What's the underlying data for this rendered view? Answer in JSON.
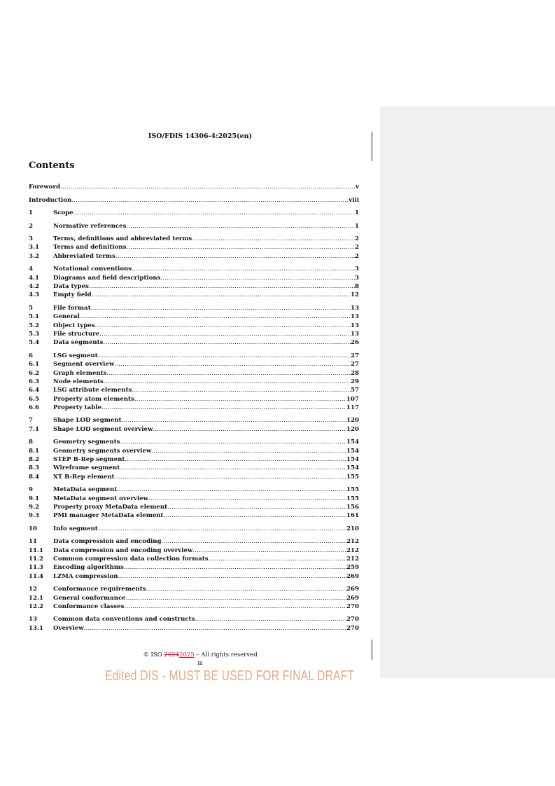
{
  "header": {
    "doc_id": "ISO/FDIS 14306-4:2025(en)"
  },
  "contents_title": "Contents",
  "toc": [
    [
      {
        "num": "",
        "title": "Foreword",
        "page": "v"
      }
    ],
    [
      {
        "num": "",
        "title": "Introduction",
        "page": "viii"
      }
    ],
    [
      {
        "num": "1",
        "title": "Scope",
        "page": "1"
      }
    ],
    [
      {
        "num": "2",
        "title": "Normative references",
        "page": "1"
      }
    ],
    [
      {
        "num": "3",
        "title": "Terms, definitions and abbreviated terms",
        "page": "2"
      },
      {
        "num": "3.1",
        "title": "Terms and definitions",
        "page": "2"
      },
      {
        "num": "3.2",
        "title": "Abbreviated terms",
        "page": "2"
      }
    ],
    [
      {
        "num": "4",
        "title": "Notational conventions",
        "page": "3"
      },
      {
        "num": "4.1",
        "title": "Diagrams and field descriptions",
        "page": "3"
      },
      {
        "num": "4.2",
        "title": "Data types",
        "page": "8"
      },
      {
        "num": "4.3",
        "title": "Empty field",
        "page": "12"
      }
    ],
    [
      {
        "num": "5",
        "title": "File format",
        "page": "13"
      },
      {
        "num": "5.1",
        "title": "General",
        "page": "13"
      },
      {
        "num": "5.2",
        "title": "Object types",
        "page": "13"
      },
      {
        "num": "5.3",
        "title": "File structure",
        "page": "13"
      },
      {
        "num": "5.4",
        "title": "Data segments",
        "page": "26"
      }
    ],
    [
      {
        "num": "6",
        "title": "LSG segment",
        "page": "27"
      },
      {
        "num": "6.1",
        "title": "Segment overview",
        "page": "27"
      },
      {
        "num": "6.2",
        "title": "Graph elements",
        "page": "28"
      },
      {
        "num": "6.3",
        "title": "Node elements",
        "page": "29"
      },
      {
        "num": "6.4",
        "title": "LSG attribute elements",
        "page": "57"
      },
      {
        "num": "6.5",
        "title": "Property atom elements",
        "page": "107"
      },
      {
        "num": "6.6",
        "title": "Property table",
        "page": "117"
      }
    ],
    [
      {
        "num": "7",
        "title": "Shape LOD segment",
        "page": "120"
      },
      {
        "num": "7.1",
        "title": "Shape LOD segment overview",
        "page": "120"
      }
    ],
    [
      {
        "num": "8",
        "title": "Geometry segments",
        "page": "154"
      },
      {
        "num": "8.1",
        "title": "Geometry segments overview",
        "page": "154"
      },
      {
        "num": "8.2",
        "title": "STEP B-Rep segment",
        "page": "154"
      },
      {
        "num": "8.3",
        "title": "Wireframe segment",
        "page": "154"
      },
      {
        "num": "8.4",
        "title": "XT B-Rep element",
        "page": "155"
      }
    ],
    [
      {
        "num": "9",
        "title": "MetaData segment",
        "page": "155"
      },
      {
        "num": "9.1",
        "title": "MetaData segment overview",
        "page": "155"
      },
      {
        "num": "9.2",
        "title": "Property proxy MetaData element",
        "page": "156"
      },
      {
        "num": "9.3",
        "title": "PMI manager MetaData element",
        "page": "161"
      }
    ],
    [
      {
        "num": "10",
        "title": "Info segment",
        "page": "210"
      }
    ],
    [
      {
        "num": "11",
        "title": "Data compression and encoding",
        "page": "212"
      },
      {
        "num": "11.1",
        "title": "Data compression and encoding overview",
        "page": "212"
      },
      {
        "num": "11.2",
        "title": "Common compression data collection formats",
        "page": "212"
      },
      {
        "num": "11.3",
        "title": "Encoding algorithms",
        "page": "259"
      },
      {
        "num": "11.4",
        "title": "LZMA compression",
        "page": "269"
      }
    ],
    [
      {
        "num": "12",
        "title": "Conformance requirements",
        "page": "269"
      },
      {
        "num": "12.1",
        "title": "General conformance",
        "page": "269"
      },
      {
        "num": "12.2",
        "title": "Conformance classes",
        "page": "270"
      }
    ],
    [
      {
        "num": "13",
        "title": "Common data conventions and constructs",
        "page": "270"
      },
      {
        "num": "13.1",
        "title": "Overview",
        "page": "270"
      }
    ]
  ],
  "footer": {
    "copyright_prefix": "© ISO ",
    "deleted_year": "2024",
    "inserted_year": "2025",
    "copyright_suffix": " – All rights reserved",
    "page_number": "iii"
  },
  "watermark": "Edited DIS - MUST BE USED FOR FINAL DRAFT",
  "colors": {
    "revision_mark": "#c0143c",
    "watermark": "#e3aa88",
    "comment_pane": "#f0f0f0"
  }
}
